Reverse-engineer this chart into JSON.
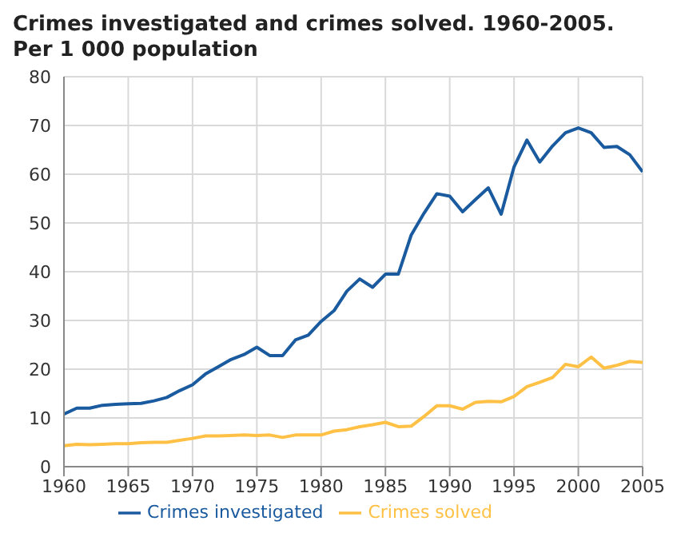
{
  "chart_data": {
    "type": "line",
    "title": "Crimes investigated and crimes solved. 1960-2005.",
    "subtitle": "Per 1 000 population",
    "x": [
      1960,
      1961,
      1962,
      1963,
      1964,
      1965,
      1966,
      1967,
      1968,
      1969,
      1970,
      1971,
      1972,
      1973,
      1974,
      1975,
      1976,
      1977,
      1978,
      1979,
      1980,
      1981,
      1982,
      1983,
      1984,
      1985,
      1986,
      1987,
      1988,
      1989,
      1990,
      1991,
      1992,
      1993,
      1994,
      1995,
      1996,
      1997,
      1998,
      1999,
      2000,
      2001,
      2002,
      2003,
      2004,
      2005
    ],
    "series": [
      {
        "name": "Crimes investigated",
        "color": "#1a5a9e",
        "values": [
          10.8,
          12,
          12,
          12.6,
          12.8,
          12.9,
          13,
          13.5,
          14.2,
          15.6,
          16.8,
          19,
          20.5,
          22,
          23,
          24.5,
          22.8,
          22.8,
          26,
          27,
          29.8,
          32,
          36,
          38.5,
          36.8,
          39.5,
          39.5,
          47.5,
          52,
          56,
          55.5,
          52.3,
          54.8,
          57.2,
          51.8,
          61.5,
          67,
          62.5,
          65.8,
          68.5,
          69.5,
          68.5,
          65.5,
          65.7,
          64,
          60.5
        ]
      },
      {
        "name": "Crimes solved",
        "color": "#ffc145",
        "values": [
          4.3,
          4.6,
          4.5,
          4.6,
          4.7,
          4.7,
          4.9,
          5,
          5,
          5.4,
          5.8,
          6.3,
          6.3,
          6.4,
          6.5,
          6.4,
          6.5,
          6,
          6.5,
          6.5,
          6.5,
          7.3,
          7.6,
          8.2,
          8.6,
          9.1,
          8.2,
          8.3,
          10.3,
          12.5,
          12.5,
          11.8,
          13.2,
          13.4,
          13.3,
          14.4,
          16.4,
          17.3,
          18.3,
          21,
          20.5,
          22.5,
          20.2,
          20.8,
          21.6,
          21.4
        ]
      }
    ],
    "xlim": [
      1960,
      2005
    ],
    "xticks": [
      1960,
      1965,
      1970,
      1975,
      1980,
      1985,
      1990,
      1995,
      2000,
      2005
    ],
    "ylim": [
      0,
      80
    ],
    "yticks": [
      0,
      10,
      20,
      30,
      40,
      50,
      60,
      70,
      80
    ],
    "grid": true,
    "legend": "bottom",
    "marker": "none",
    "line_style": "solid"
  }
}
